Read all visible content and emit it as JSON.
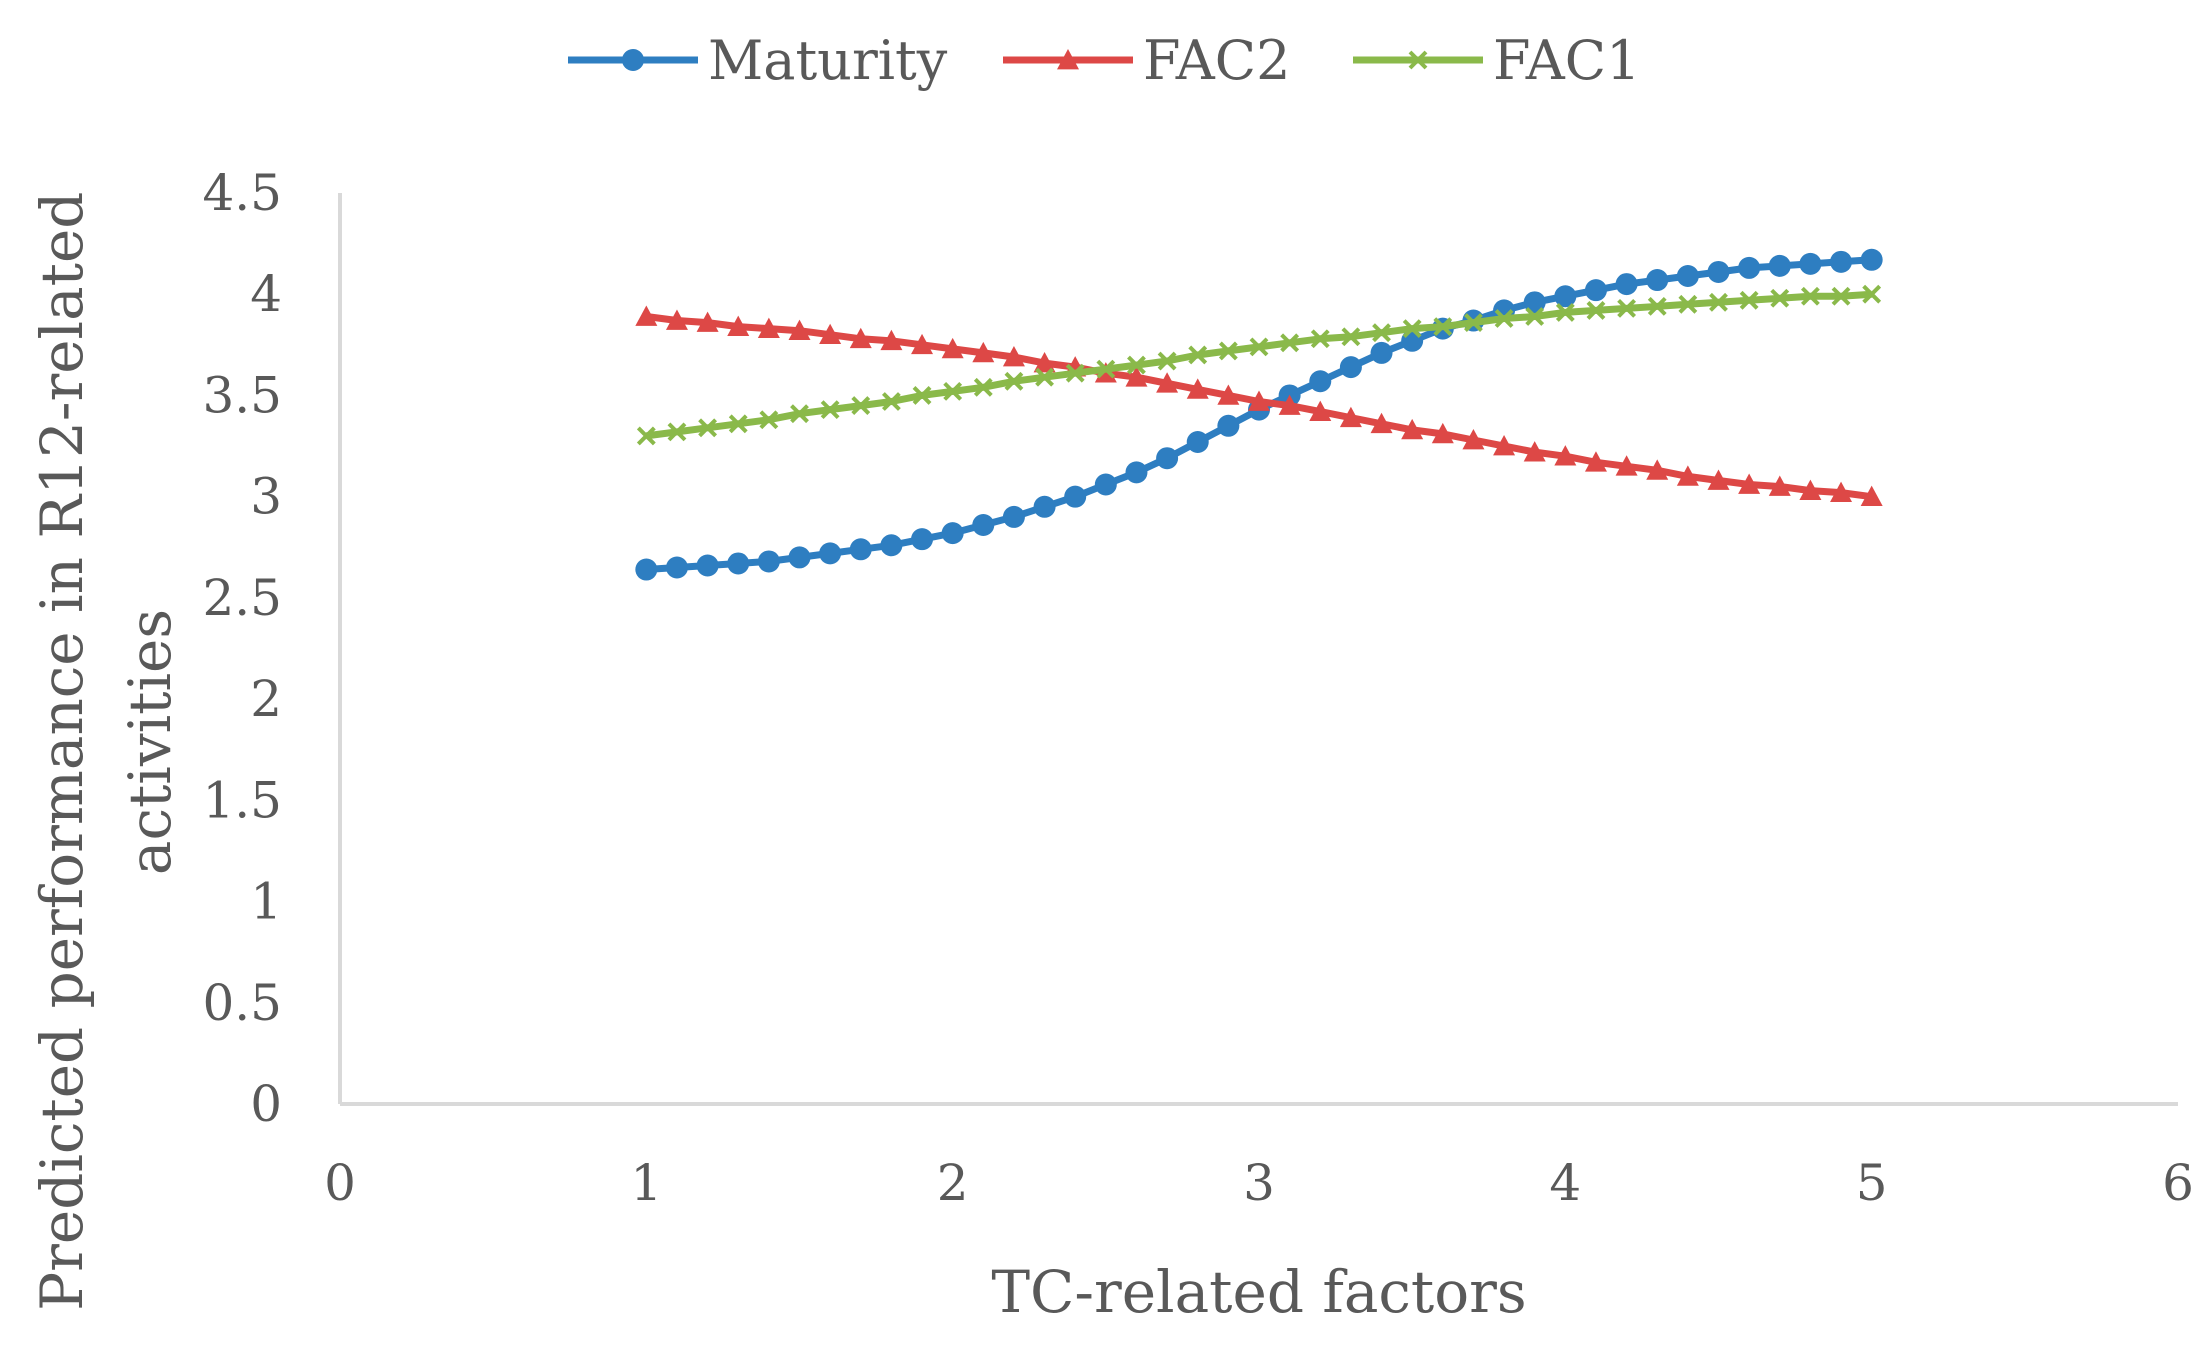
{
  "chart_data": {
    "type": "line",
    "title": "",
    "xlabel": "TC-related factors",
    "ylabel_lines": [
      "Predicted performance in R12-related",
      "activities"
    ],
    "xlim": [
      0,
      6
    ],
    "ylim": [
      0,
      4.5
    ],
    "xticks": [
      "0",
      "1",
      "2",
      "3",
      "4",
      "5",
      "6"
    ],
    "yticks": [
      "0",
      "0.5",
      "1",
      "1.5",
      "2",
      "2.5",
      "3",
      "3.5",
      "4",
      "4.5"
    ],
    "grid": false,
    "legend_position": "top-center",
    "x": [
      1.0,
      1.1,
      1.2,
      1.3,
      1.4,
      1.5,
      1.6,
      1.7,
      1.8,
      1.9,
      2.0,
      2.1,
      2.2,
      2.3,
      2.4,
      2.5,
      2.6,
      2.7,
      2.8,
      2.9,
      3.0,
      3.1,
      3.2,
      3.3,
      3.4,
      3.5,
      3.6,
      3.7,
      3.8,
      3.9,
      4.0,
      4.1,
      4.2,
      4.3,
      4.4,
      4.5,
      4.6,
      4.7,
      4.8,
      4.9,
      5.0
    ],
    "series": [
      {
        "name": "Maturity",
        "color": "#2E7EC1",
        "marker": "circle",
        "values": [
          2.64,
          2.65,
          2.66,
          2.67,
          2.68,
          2.7,
          2.72,
          2.74,
          2.76,
          2.79,
          2.82,
          2.86,
          2.9,
          2.95,
          3.0,
          3.06,
          3.12,
          3.19,
          3.27,
          3.35,
          3.43,
          3.5,
          3.57,
          3.64,
          3.71,
          3.77,
          3.83,
          3.87,
          3.92,
          3.96,
          3.99,
          4.02,
          4.05,
          4.07,
          4.09,
          4.11,
          4.13,
          4.14,
          4.15,
          4.16,
          4.17
        ]
      },
      {
        "name": "FAC2",
        "color": "#DD4846",
        "marker": "triangle",
        "values": [
          3.89,
          3.87,
          3.86,
          3.84,
          3.83,
          3.82,
          3.8,
          3.78,
          3.77,
          3.75,
          3.73,
          3.71,
          3.69,
          3.66,
          3.64,
          3.61,
          3.59,
          3.56,
          3.53,
          3.5,
          3.47,
          3.45,
          3.42,
          3.39,
          3.36,
          3.33,
          3.31,
          3.28,
          3.25,
          3.22,
          3.2,
          3.17,
          3.15,
          3.13,
          3.1,
          3.08,
          3.06,
          3.05,
          3.03,
          3.02,
          3.0
        ]
      },
      {
        "name": "FAC1",
        "color": "#8AB94A",
        "marker": "x",
        "values": [
          3.3,
          3.32,
          3.34,
          3.36,
          3.38,
          3.41,
          3.43,
          3.45,
          3.47,
          3.5,
          3.52,
          3.54,
          3.57,
          3.59,
          3.61,
          3.63,
          3.65,
          3.67,
          3.7,
          3.72,
          3.74,
          3.76,
          3.78,
          3.79,
          3.81,
          3.83,
          3.84,
          3.86,
          3.88,
          3.89,
          3.91,
          3.92,
          3.93,
          3.94,
          3.95,
          3.96,
          3.97,
          3.98,
          3.99,
          3.99,
          4.0
        ]
      }
    ]
  }
}
